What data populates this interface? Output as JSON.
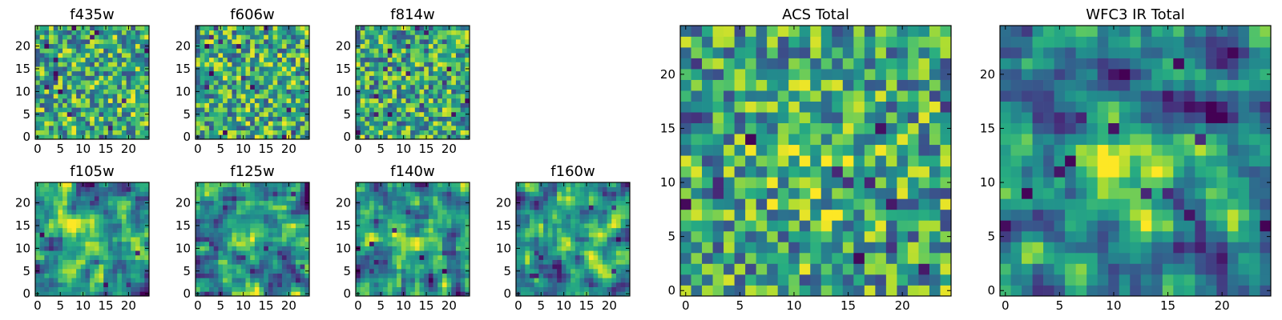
{
  "chart_data": {
    "type": "heatmap",
    "colormap": "viridis",
    "grid_size": 25,
    "tick_rule": "ticks every 5 on both axes; y axis origin at bottom (0 at bottom, 20 near top)",
    "panels": [
      {
        "title": "f435w",
        "xticks": [
          "0",
          "5",
          "10",
          "15",
          "20"
        ],
        "yticks": [
          "0",
          "5",
          "10",
          "15",
          "20"
        ],
        "texture": "fine pixel noise, mostly green-yellow, scattered dark pixels",
        "seed": 11,
        "smooth": 0,
        "dark_spots": 14,
        "center_boost": 0.0,
        "base": 0.62
      },
      {
        "title": "f606w",
        "xticks": [
          "0",
          "5",
          "10",
          "15",
          "20"
        ],
        "yticks": [
          "0",
          "5",
          "10",
          "15",
          "20"
        ],
        "texture": "fine pixel noise, mostly green-yellow, scattered dark pixels",
        "seed": 23,
        "smooth": 0,
        "dark_spots": 14,
        "center_boost": 0.0,
        "base": 0.62
      },
      {
        "title": "f814w",
        "xticks": [
          "0",
          "5",
          "10",
          "15",
          "20"
        ],
        "yticks": [
          "0",
          "5",
          "10",
          "15",
          "20"
        ],
        "texture": "fine pixel noise, mostly green-yellow, scattered dark pixels",
        "seed": 37,
        "smooth": 0,
        "dark_spots": 16,
        "center_boost": 0.0,
        "base": 0.6
      },
      {
        "title": "f105w",
        "xticks": [
          "0",
          "5",
          "10",
          "15",
          "20"
        ],
        "yticks": [
          "0",
          "5",
          "10",
          "15",
          "20"
        ],
        "texture": "smoothed noise with bright yellow blob near center",
        "seed": 41,
        "smooth": 1,
        "dark_spots": 6,
        "center_boost": 0.3,
        "base": 0.5
      },
      {
        "title": "f125w",
        "xticks": [
          "0",
          "5",
          "10",
          "15",
          "20"
        ],
        "yticks": [
          "0",
          "5",
          "10",
          "15",
          "20"
        ],
        "texture": "smoothed noise, mottled",
        "seed": 53,
        "smooth": 1,
        "dark_spots": 8,
        "center_boost": 0.12,
        "base": 0.5
      },
      {
        "title": "f140w",
        "xticks": [
          "0",
          "5",
          "10",
          "15",
          "20"
        ],
        "yticks": [
          "0",
          "5",
          "10",
          "15",
          "20"
        ],
        "texture": "smoothed noise, mottled",
        "seed": 67,
        "smooth": 1,
        "dark_spots": 8,
        "center_boost": 0.12,
        "base": 0.5
      },
      {
        "title": "f160w",
        "xticks": [
          "0",
          "5",
          "10",
          "15",
          "20"
        ],
        "yticks": [
          "0",
          "5",
          "10",
          "15",
          "20"
        ],
        "texture": "smoothed noise, mottled",
        "seed": 79,
        "smooth": 1,
        "dark_spots": 7,
        "center_boost": 0.18,
        "base": 0.5
      },
      {
        "title": "ACS Total",
        "xticks": [
          "0",
          "5",
          "10",
          "15",
          "20"
        ],
        "yticks": [
          "0",
          "5",
          "10",
          "15",
          "20"
        ],
        "texture": "pixel noise, green-yellow with dark spots, slight bright center",
        "seed": 89,
        "smooth": 0,
        "dark_spots": 16,
        "center_boost": 0.12,
        "base": 0.6
      },
      {
        "title": "WFC3 IR Total",
        "xticks": [
          "0",
          "5",
          "10",
          "15",
          "20"
        ],
        "yticks": [
          "0",
          "5",
          "10",
          "15",
          "20"
        ],
        "texture": "smoothed noise, green-teal, bright yellow center blob",
        "seed": 97,
        "smooth": 1,
        "dark_spots": 12,
        "center_boost": 0.42,
        "base": 0.42
      }
    ]
  }
}
